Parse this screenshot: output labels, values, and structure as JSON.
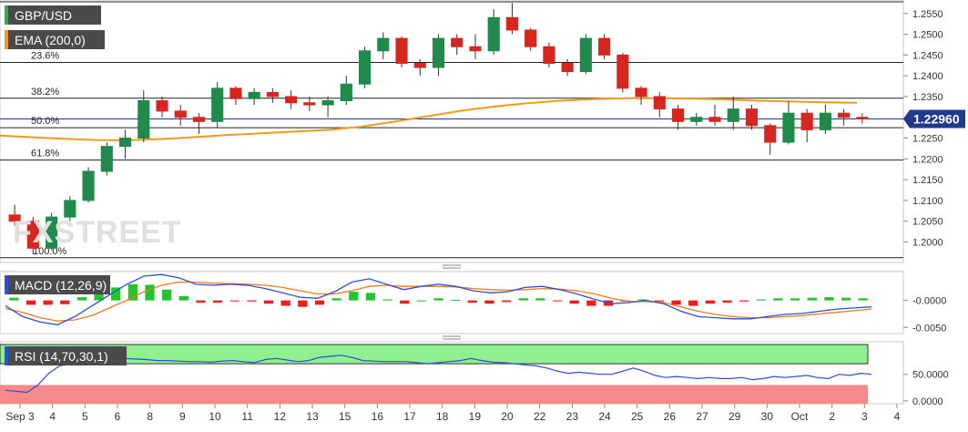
{
  "chart_data": [
    {
      "type": "candlestick",
      "title": "GBP/USD",
      "symbol": "GBP/USD",
      "indicator_label": "EMA (200,0)",
      "last_price": "1.22960",
      "watermark": "FXSTREET",
      "ylim": [
        1.1955,
        1.2578
      ],
      "y_ticks": [
        "1.2000",
        "1.2050",
        "1.2100",
        "1.2150",
        "1.2200",
        "1.2250",
        "1.2300",
        "1.2350",
        "1.2400",
        "1.2450",
        "1.2500",
        "1.2550"
      ],
      "y_tick_values": [
        1.2,
        1.205,
        1.21,
        1.215,
        1.22,
        1.225,
        1.23,
        1.235,
        1.24,
        1.245,
        1.25,
        1.255
      ],
      "x_ticks": [
        "Sep 3",
        "4",
        "5",
        "6",
        "8",
        "9",
        "10",
        "11",
        "12",
        "13",
        "15",
        "16",
        "17",
        "18",
        "19",
        "20",
        "22",
        "23",
        "24",
        "25",
        "26",
        "27",
        "29",
        "30",
        "Oct",
        "2",
        "3",
        "4"
      ],
      "fib_levels": [
        {
          "label": "23.6%",
          "value": 1.2432
        },
        {
          "label": "38.2%",
          "value": 1.2346
        },
        {
          "label": "50.0%",
          "value": 1.2275
        },
        {
          "label": "61.8%",
          "value": 1.2197
        },
        {
          "label": "100.0%",
          "value": 1.1962
        }
      ],
      "ema_200": [
        1.2256,
        1.2252,
        1.2248,
        1.2245,
        1.2245,
        1.2248,
        1.2253,
        1.2258,
        1.2262,
        1.2266,
        1.227,
        1.2278,
        1.229,
        1.2303,
        1.2316,
        1.2326,
        1.2334,
        1.234,
        1.2344,
        1.2346,
        1.2346,
        1.2345,
        1.2343,
        1.234,
        1.2338,
        1.2336,
        1.2335
      ],
      "candles": [
        [
          1.2065,
          1.209,
          1.204,
          1.205
        ],
        [
          1.205,
          1.206,
          1.197,
          1.1985
        ],
        [
          1.1985,
          1.207,
          1.198,
          1.206
        ],
        [
          1.206,
          1.211,
          1.205,
          1.21
        ],
        [
          1.21,
          1.218,
          1.2095,
          1.217
        ],
        [
          1.217,
          1.224,
          1.216,
          1.223
        ],
        [
          1.223,
          1.227,
          1.22,
          1.225
        ],
        [
          1.225,
          1.2365,
          1.224,
          1.234
        ],
        [
          1.234,
          1.235,
          1.23,
          1.2315
        ],
        [
          1.2315,
          1.233,
          1.228,
          1.23
        ],
        [
          1.23,
          1.231,
          1.226,
          1.229
        ],
        [
          1.229,
          1.2385,
          1.2275,
          1.237
        ],
        [
          1.237,
          1.2375,
          1.233,
          1.2345
        ],
        [
          1.2345,
          1.237,
          1.233,
          1.236
        ],
        [
          1.236,
          1.237,
          1.2335,
          1.235
        ],
        [
          1.235,
          1.2365,
          1.232,
          1.2335
        ],
        [
          1.2335,
          1.235,
          1.2315,
          1.233
        ],
        [
          1.233,
          1.235,
          1.23,
          1.234
        ],
        [
          1.234,
          1.24,
          1.233,
          1.238
        ],
        [
          1.238,
          1.247,
          1.237,
          1.246
        ],
        [
          1.246,
          1.2505,
          1.244,
          1.249
        ],
        [
          1.249,
          1.2495,
          1.242,
          1.243
        ],
        [
          1.243,
          1.244,
          1.24,
          1.242
        ],
        [
          1.242,
          1.25,
          1.24,
          1.249
        ],
        [
          1.249,
          1.25,
          1.245,
          1.247
        ],
        [
          1.247,
          1.25,
          1.244,
          1.246
        ],
        [
          1.246,
          1.256,
          1.245,
          1.254
        ],
        [
          1.254,
          1.2575,
          1.25,
          1.251
        ],
        [
          1.251,
          1.2515,
          1.246,
          1.247
        ],
        [
          1.247,
          1.248,
          1.242,
          1.243
        ],
        [
          1.243,
          1.244,
          1.24,
          1.241
        ],
        [
          1.241,
          1.25,
          1.2405,
          1.249
        ],
        [
          1.249,
          1.25,
          1.244,
          1.245
        ],
        [
          1.245,
          1.2455,
          1.236,
          1.237
        ],
        [
          1.237,
          1.2375,
          1.233,
          1.235
        ],
        [
          1.235,
          1.236,
          1.23,
          1.232
        ],
        [
          1.232,
          1.233,
          1.227,
          1.229
        ],
        [
          1.229,
          1.231,
          1.228,
          1.23
        ],
        [
          1.23,
          1.233,
          1.228,
          1.229
        ],
        [
          1.229,
          1.235,
          1.227,
          1.232
        ],
        [
          1.232,
          1.233,
          1.227,
          1.228
        ],
        [
          1.228,
          1.2285,
          1.221,
          1.224
        ],
        [
          1.224,
          1.234,
          1.2235,
          1.231
        ],
        [
          1.231,
          1.232,
          1.224,
          1.227
        ],
        [
          1.227,
          1.233,
          1.226,
          1.231
        ],
        [
          1.231,
          1.232,
          1.228,
          1.23
        ],
        [
          1.23,
          1.231,
          1.2285,
          1.2296
        ]
      ]
    },
    {
      "type": "histogram+lines",
      "title": "MACD (12,26,9)",
      "y_ticks": [
        "-0.0000",
        "-0.0050"
      ],
      "y_tick_values": [
        0.0,
        -0.005
      ],
      "ylim": [
        -0.0058,
        0.005
      ],
      "macd": [
        -0.001,
        -0.003,
        -0.004,
        -0.0045,
        -0.003,
        -0.001,
        0.001,
        0.003,
        0.0045,
        0.0048,
        0.0042,
        0.003,
        0.0028,
        0.003,
        0.0028,
        0.0022,
        0.0014,
        0.0006,
        0.0004,
        0.0016,
        0.0034,
        0.004,
        0.003,
        0.002,
        0.0026,
        0.003,
        0.0026,
        0.0018,
        0.0014,
        0.0016,
        0.0024,
        0.0026,
        0.002,
        0.0012,
        0.0002,
        -0.0006,
        -0.0004,
        0.0,
        -0.0006,
        -0.002,
        -0.003,
        -0.0032,
        -0.0034,
        -0.0034,
        -0.003,
        -0.0026,
        -0.0024,
        -0.002,
        -0.0016,
        -0.0014,
        -0.0012
      ],
      "signal": [
        -0.0015,
        -0.0022,
        -0.0032,
        -0.0038,
        -0.0036,
        -0.0028,
        -0.0014,
        0.0,
        0.0016,
        0.0028,
        0.0034,
        0.0034,
        0.0032,
        0.0031,
        0.003,
        0.0028,
        0.0024,
        0.0018,
        0.0012,
        0.0012,
        0.0018,
        0.0026,
        0.0028,
        0.0026,
        0.0026,
        0.0026,
        0.0025,
        0.0022,
        0.002,
        0.0019,
        0.002,
        0.0022,
        0.0021,
        0.0018,
        0.0012,
        0.0004,
        -0.0002,
        -0.0002,
        -0.0004,
        -0.0012,
        -0.002,
        -0.0026,
        -0.003,
        -0.0032,
        -0.0032,
        -0.003,
        -0.0028,
        -0.0025,
        -0.0022,
        -0.0019,
        -0.0016
      ],
      "histogram": [
        0.0005,
        -0.0008,
        -0.0008,
        -0.0007,
        0.0006,
        0.0018,
        0.0024,
        0.003,
        0.0029,
        0.002,
        0.0008,
        -0.0004,
        -0.0004,
        -0.0001,
        -0.0002,
        -0.0006,
        -0.001,
        -0.0012,
        -0.0008,
        0.0004,
        0.0016,
        0.0014,
        0.0002,
        -0.0006,
        0.0,
        0.0004,
        0.0001,
        -0.0004,
        -0.0006,
        -0.0003,
        0.0004,
        0.0004,
        -0.0001,
        -0.0006,
        -0.001,
        -0.001,
        -0.0002,
        0.0002,
        -0.0002,
        -0.0008,
        -0.001,
        -0.0006,
        -0.0004,
        -0.0002,
        0.0002,
        0.0004,
        0.0004,
        0.0005,
        0.0006,
        0.0005,
        0.0004
      ]
    },
    {
      "type": "line",
      "title": "RSI (14,70,30,1)",
      "y_ticks": [
        "50.0000",
        "0.0000"
      ],
      "y_tick_values": [
        50,
        0
      ],
      "ylim": [
        -2,
        108
      ],
      "overbought": 70,
      "oversold": 30,
      "values": [
        20,
        18,
        16,
        30,
        52,
        66,
        70,
        74,
        80,
        82,
        81,
        80,
        79,
        78,
        76,
        76,
        75,
        74,
        74,
        73,
        75,
        76,
        74,
        72,
        78,
        80,
        77,
        74,
        76,
        82,
        84,
        86,
        82,
        76,
        75,
        74,
        74,
        74,
        72,
        70,
        72,
        74,
        76,
        80,
        76,
        73,
        72,
        70,
        68,
        66,
        62,
        56,
        52,
        54,
        52,
        50,
        50,
        56,
        62,
        56,
        48,
        44,
        46,
        44,
        42,
        44,
        42,
        42,
        44,
        40,
        42,
        46,
        44,
        46,
        48,
        44,
        42,
        50,
        48,
        52,
        50
      ]
    }
  ]
}
